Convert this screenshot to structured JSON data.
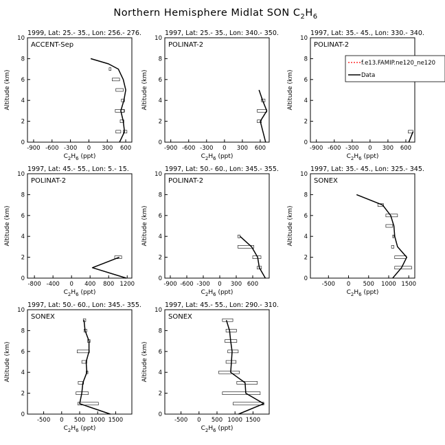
{
  "title": {
    "main": "Northern Hemisphere Midlat SON C",
    "sub": "2",
    "main2": "H",
    "sub2": "6"
  },
  "axis_common": {
    "ylabel": "Altitude (km)",
    "xlabel_a": "C",
    "xlabel_sub1": "2",
    "xlabel_b": "H",
    "xlabel_sub2": "6",
    "xlabel_c": " (ppt)"
  },
  "legend": {
    "model_label": "f.e13.FAMIP.ne120_ne120",
    "data_label": "Data",
    "model_color": "#ff0000",
    "data_color": "#000000"
  },
  "chart_data": [
    {
      "type": "line",
      "header": "1999, Lat: 25.- 35., Lon: 256.- 276.",
      "campaign": "ACCENT-Sep",
      "xlim": [
        -1000,
        700
      ],
      "ylim": [
        0,
        10
      ],
      "xticks": [
        -900,
        -600,
        -300,
        0,
        300,
        600
      ],
      "yticks": [
        0,
        2,
        4,
        6,
        8,
        10
      ],
      "series": [
        {
          "name": "Data",
          "points": [
            [
              500,
              0
            ],
            [
              580,
              1
            ],
            [
              560,
              2
            ],
            [
              520,
              3
            ],
            [
              570,
              4
            ],
            [
              600,
              5
            ],
            [
              560,
              6
            ],
            [
              480,
              7
            ],
            [
              320,
              7.5
            ],
            [
              30,
              8
            ]
          ]
        }
      ],
      "boxes": [
        [
          440,
          520,
          1
        ],
        [
          560,
          620,
          1
        ],
        [
          510,
          570,
          2
        ],
        [
          520,
          580,
          3
        ],
        [
          430,
          570,
          3
        ],
        [
          530,
          580,
          4
        ],
        [
          440,
          560,
          5
        ],
        [
          380,
          500,
          6
        ],
        [
          330,
          360,
          7
        ]
      ]
    },
    {
      "type": "line",
      "header": "1997, Lat: 25.- 35., Lon: 340.- 350.",
      "campaign": "POLINAT-2",
      "xlim": [
        -1000,
        750
      ],
      "ylim": [
        0,
        10
      ],
      "xticks": [
        -900,
        -600,
        -300,
        0,
        300,
        600
      ],
      "yticks": [
        0,
        2,
        4,
        6,
        8,
        10
      ],
      "series": [
        {
          "name": "Data",
          "points": [
            [
              690,
              0
            ],
            [
              600,
              2
            ],
            [
              710,
              3
            ],
            [
              640,
              4
            ],
            [
              580,
              5
            ]
          ]
        }
      ],
      "boxes": [
        [
          550,
          620,
          2
        ],
        [
          550,
          710,
          3
        ],
        [
          620,
          680,
          4
        ]
      ]
    },
    {
      "type": "line",
      "header": "1997, Lat: 35.- 45., Lon: 330.- 340.",
      "campaign": "POLINAT-2",
      "xlim": [
        -1000,
        750
      ],
      "ylim": [
        0,
        10
      ],
      "xticks": [
        -900,
        -600,
        -300,
        0,
        300,
        600
      ],
      "yticks": [
        0,
        2,
        4,
        6,
        8,
        10
      ],
      "series": [
        {
          "name": "Data",
          "points": [
            [
              650,
              0
            ],
            [
              720,
              1
            ]
          ]
        }
      ],
      "boxes": [
        [
          640,
          720,
          1
        ]
      ]
    },
    {
      "type": "line",
      "header": "1997, Lat: 45.- 55., Lon: 5.- 15.",
      "campaign": "POLINAT-2",
      "xlim": [
        -950,
        1300
      ],
      "ylim": [
        0,
        10
      ],
      "xticks": [
        -800,
        -400,
        0,
        400,
        800,
        1200
      ],
      "yticks": [
        0,
        2,
        4,
        6,
        8,
        10
      ],
      "series": [
        {
          "name": "Data",
          "points": [
            [
              1180,
              0
            ],
            [
              450,
              1
            ],
            [
              1030,
              2
            ]
          ]
        }
      ],
      "boxes": [
        [
          930,
          1080,
          2
        ]
      ]
    },
    {
      "type": "line",
      "header": "1997, Lat: 50.- 60., Lon: 345.- 355.",
      "campaign": "POLINAT-2",
      "xlim": [
        -1000,
        900
      ],
      "ylim": [
        0,
        10
      ],
      "xticks": [
        -900,
        -600,
        -300,
        0,
        300,
        600
      ],
      "yticks": [
        0,
        2,
        4,
        6,
        8,
        10
      ],
      "series": [
        {
          "name": "Data",
          "points": [
            [
              830,
              0
            ],
            [
              720,
              1
            ],
            [
              690,
              2
            ],
            [
              580,
              3
            ],
            [
              370,
              4
            ]
          ]
        }
      ],
      "boxes": [
        [
          680,
          760,
          1
        ],
        [
          600,
          750,
          2
        ],
        [
          330,
          620,
          3
        ],
        [
          330,
          370,
          4
        ]
      ]
    },
    {
      "type": "line",
      "header": "1997, Lat: 35.- 45., Lon: 325.- 345.",
      "campaign": "SONEX",
      "xlim": [
        -950,
        1650
      ],
      "ylim": [
        0,
        10
      ],
      "xticks": [
        -500,
        0,
        500,
        1000,
        1500
      ],
      "yticks": [
        0,
        2,
        4,
        6,
        8,
        10
      ],
      "series": [
        {
          "name": "Data",
          "points": [
            [
              1100,
              0
            ],
            [
              1320,
              1
            ],
            [
              1450,
              2
            ],
            [
              1220,
              3
            ],
            [
              1150,
              4
            ],
            [
              1130,
              5
            ],
            [
              1050,
              6
            ],
            [
              850,
              7
            ],
            [
              200,
              8
            ]
          ]
        }
      ],
      "boxes": [
        [
          1150,
          1570,
          1
        ],
        [
          1150,
          1440,
          2
        ],
        [
          1070,
          1130,
          3
        ],
        [
          1100,
          1130,
          4
        ],
        [
          930,
          1100,
          5
        ],
        [
          930,
          1220,
          6
        ],
        [
          730,
          870,
          7
        ]
      ]
    },
    {
      "type": "line",
      "header": "1997, Lat: 50.- 60., Lon: 345.- 355.",
      "campaign": "SONEX",
      "xlim": [
        -950,
        1950
      ],
      "ylim": [
        0,
        10
      ],
      "xticks": [
        -500,
        0,
        500,
        1000,
        1500
      ],
      "yticks": [
        0,
        2,
        4,
        6,
        8,
        10
      ],
      "series": [
        {
          "name": "Data",
          "points": [
            [
              1350,
              0
            ],
            [
              500,
              1
            ],
            [
              560,
              2
            ],
            [
              590,
              3
            ],
            [
              700,
              4
            ],
            [
              680,
              5
            ],
            [
              760,
              6
            ],
            [
              760,
              7
            ],
            [
              650,
              8
            ],
            [
              620,
              9
            ]
          ]
        }
      ],
      "boxes": [
        [
          450,
          1020,
          1
        ],
        [
          400,
          740,
          2
        ],
        [
          460,
          610,
          3
        ],
        [
          680,
          730,
          4
        ],
        [
          560,
          700,
          5
        ],
        [
          430,
          770,
          6
        ],
        [
          720,
          790,
          7
        ],
        [
          620,
          700,
          8
        ],
        [
          600,
          670,
          9
        ]
      ]
    },
    {
      "type": "line",
      "header": "1997, Lat: 45.- 55., Lon: 290.- 310.",
      "campaign": "SONEX",
      "xlim": [
        -950,
        1950
      ],
      "ylim": [
        0,
        10
      ],
      "xticks": [
        -500,
        0,
        500,
        1000,
        1500
      ],
      "yticks": [
        0,
        2,
        4,
        6,
        8,
        10
      ],
      "series": [
        {
          "name": "Data",
          "points": [
            [
              1100,
              0
            ],
            [
              1800,
              1
            ],
            [
              1300,
              2
            ],
            [
              1280,
              3
            ],
            [
              880,
              4
            ],
            [
              900,
              5
            ],
            [
              920,
              6
            ],
            [
              880,
              7
            ],
            [
              850,
              8
            ],
            [
              760,
              9
            ]
          ]
        }
      ],
      "boxes": [
        [
          950,
          1800,
          1
        ],
        [
          650,
          1700,
          2
        ],
        [
          1050,
          1620,
          3
        ],
        [
          550,
          1120,
          4
        ],
        [
          750,
          1030,
          5
        ],
        [
          800,
          1090,
          6
        ],
        [
          720,
          1050,
          7
        ],
        [
          750,
          1040,
          8
        ],
        [
          650,
          940,
          9
        ]
      ]
    }
  ]
}
